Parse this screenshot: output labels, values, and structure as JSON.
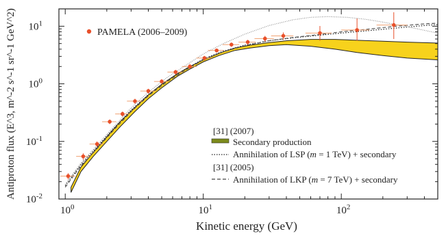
{
  "chart_data": {
    "type": "scatter",
    "xlabel": "Kinetic energy  (GeV)",
    "ylabel": "Antiproton flux  (E^3, m^-2 s^-1 sr^-1 GeV^2)",
    "x_scale": "log",
    "y_scale": "log",
    "xlim": [
      0.9,
      500
    ],
    "ylim": [
      0.01,
      20
    ],
    "x_ticks": [
      1,
      10,
      100
    ],
    "x_tick_labels": [
      "10^0",
      "10^1",
      "10^2"
    ],
    "y_ticks": [
      0.01,
      0.1,
      1,
      10
    ],
    "y_tick_labels": [
      "10^-2",
      "10^-1",
      "10^0",
      "10^1"
    ],
    "grid": false,
    "legend_top_left": "PAMELA (2006–2009)",
    "legend_bottom": {
      "ref1": "[31] (2007)",
      "secondary": "Secondary production",
      "lsp_prefix": "Annihilation of LSP (",
      "lsp_m": "m",
      "lsp_suffix": " = 1 TeV) + secondary",
      "ref2": "[31] (2005)",
      "lkp_prefix": "Annihilation of LKP (",
      "lkp_m": "m",
      "lkp_suffix": " = 7 TeV) + secondary"
    },
    "colors": {
      "pamela_points": "#e8502a",
      "secondary_band": "#f7d21c",
      "secondary_band_edge": "#222222",
      "lsp_curve": "#222222",
      "lkp_curve": "#555555",
      "dotted_curve": "#888888"
    },
    "series": [
      {
        "name": "PAMELA (2006–2009)",
        "kind": "points",
        "x": [
          1.05,
          1.35,
          1.7,
          2.1,
          2.6,
          3.2,
          4.0,
          5.0,
          6.3,
          8.0,
          10.2,
          12.5,
          16,
          21,
          28,
          38,
          70,
          130,
          240
        ],
        "y": [
          0.025,
          0.055,
          0.09,
          0.22,
          0.3,
          0.5,
          0.75,
          1.1,
          1.6,
          2.0,
          2.8,
          3.8,
          4.8,
          5.3,
          6.1,
          6.8,
          7.6,
          8.6,
          10.5
        ],
        "yerr_low": [
          0.003,
          0.007,
          0.01,
          0.02,
          0.03,
          0.05,
          0.07,
          0.1,
          0.15,
          0.2,
          0.25,
          0.3,
          0.4,
          0.5,
          0.7,
          1.0,
          2.0,
          3.0,
          4.5
        ],
        "yerr_high": [
          0.003,
          0.007,
          0.01,
          0.02,
          0.03,
          0.05,
          0.07,
          0.1,
          0.15,
          0.2,
          0.25,
          0.3,
          0.4,
          0.5,
          0.7,
          1.0,
          2.5,
          5.0,
          7.0
        ],
        "xerr": [
          0.13,
          0.15,
          0.2,
          0.25,
          0.3,
          0.4,
          0.5,
          0.6,
          0.8,
          1.0,
          1.3,
          1.7,
          2.2,
          3.0,
          4.5,
          7.0,
          15,
          30,
          60
        ]
      },
      {
        "name": "Secondary production",
        "kind": "band",
        "x": [
          1.1,
          1.3,
          1.6,
          2.0,
          2.5,
          3.2,
          4.0,
          5.0,
          6.5,
          8.0,
          10,
          13,
          17,
          22,
          30,
          40,
          60,
          90,
          130,
          200,
          300,
          500
        ],
        "y_low": [
          0.013,
          0.03,
          0.055,
          0.1,
          0.18,
          0.33,
          0.55,
          0.85,
          1.35,
          1.8,
          2.4,
          3.1,
          3.8,
          4.2,
          4.6,
          4.8,
          4.5,
          4.0,
          3.5,
          3.1,
          2.8,
          2.6
        ],
        "y_high": [
          0.016,
          0.036,
          0.065,
          0.12,
          0.22,
          0.39,
          0.64,
          0.98,
          1.5,
          2.0,
          2.6,
          3.4,
          4.2,
          4.7,
          5.2,
          5.6,
          5.9,
          5.9,
          5.7,
          5.5,
          5.3,
          5.1
        ]
      },
      {
        "name": "Annihilation of LSP (m = 1 TeV) + secondary",
        "kind": "line",
        "style": "dotted",
        "x": [
          1.0,
          1.3,
          1.7,
          2.2,
          3.0,
          4.0,
          5.5,
          7.5,
          10,
          14,
          20,
          30,
          45,
          70,
          100,
          150,
          250,
          400,
          500
        ],
        "y": [
          0.017,
          0.04,
          0.08,
          0.16,
          0.35,
          0.65,
          1.15,
          1.8,
          2.7,
          3.7,
          4.7,
          5.6,
          6.3,
          7.0,
          7.6,
          8.3,
          9.3,
          10.3,
          10.7
        ]
      },
      {
        "name": "Annihilation of LKP (m = 7 TeV) + secondary",
        "kind": "line",
        "style": "dashed",
        "x": [
          1.0,
          1.3,
          1.7,
          2.2,
          3.0,
          4.0,
          5.5,
          7.5,
          10,
          14,
          20,
          30,
          45,
          70,
          100,
          150,
          250,
          400,
          500
        ],
        "y": [
          0.016,
          0.038,
          0.075,
          0.15,
          0.33,
          0.62,
          1.1,
          1.75,
          2.6,
          3.6,
          4.6,
          5.6,
          6.4,
          7.2,
          8.0,
          8.8,
          10.0,
          11.0,
          11.3
        ]
      },
      {
        "kind": "line",
        "style": "dotted-light",
        "x": [
          1.0,
          1.3,
          1.7,
          2.2,
          3.0,
          4.0,
          5.5,
          7.5,
          10,
          14,
          20,
          30,
          45,
          60,
          80,
          110,
          150,
          200,
          300,
          500
        ],
        "y": [
          0.018,
          0.042,
          0.085,
          0.17,
          0.38,
          0.72,
          1.3,
          2.1,
          3.3,
          5.0,
          7.3,
          10.3,
          13.0,
          14.3,
          14.7,
          14.3,
          13.2,
          11.8,
          9.8,
          7.6
        ]
      }
    ]
  }
}
